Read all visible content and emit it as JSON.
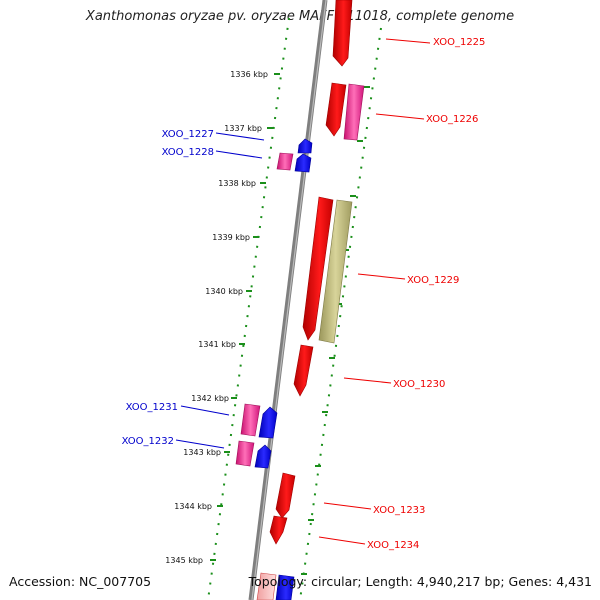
{
  "title": "Xanthomonas oryzae pv. oryzae MAFF 311018, complete genome",
  "accession": "Accession: NC_007705",
  "summary": "Topology: circular; Length: 4,940,217 bp; Genes: 4,431",
  "colors": {
    "backbone": "#808080",
    "plus_scale": "#1a8f1a",
    "minus_scale": "#1a8f1a",
    "plus_strand_label": "#ee0000",
    "minus_strand_label": "#0000cc",
    "gene_red": "#ee0000",
    "gene_pink": "#e0157f",
    "gene_blue": "#0000ee",
    "gene_olive": "#b0ab6a"
  },
  "scale_ticks": [
    "1336 kbp",
    "1337 kbp",
    "1338 kbp",
    "1339 kbp",
    "1340 kbp",
    "1341 kbp",
    "1342 kbp",
    "1343 kbp",
    "1344 kbp",
    "1345 kbp"
  ],
  "genes": [
    {
      "id": "XOO_1225",
      "strand": "plus",
      "label_side": "right"
    },
    {
      "id": "XOO_1226",
      "strand": "plus",
      "label_side": "right"
    },
    {
      "id": "XOO_1227",
      "strand": "minus",
      "label_side": "left"
    },
    {
      "id": "XOO_1228",
      "strand": "minus",
      "label_side": "left"
    },
    {
      "id": "XOO_1229",
      "strand": "plus",
      "label_side": "right"
    },
    {
      "id": "XOO_1230",
      "strand": "plus",
      "label_side": "right"
    },
    {
      "id": "XOO_1231",
      "strand": "minus",
      "label_side": "left"
    },
    {
      "id": "XOO_1232",
      "strand": "minus",
      "label_side": "left"
    },
    {
      "id": "XOO_1233",
      "strand": "plus",
      "label_side": "right"
    },
    {
      "id": "XOO_1234",
      "strand": "plus",
      "label_side": "right"
    }
  ]
}
